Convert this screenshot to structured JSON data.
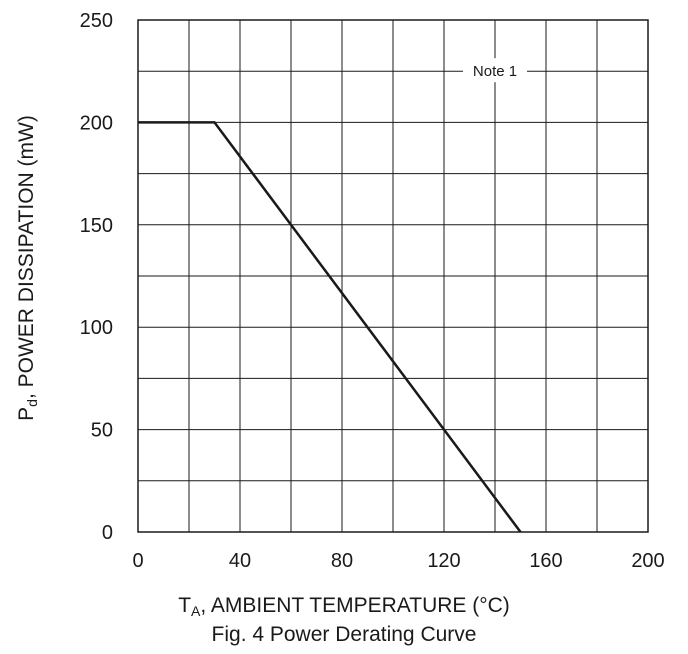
{
  "chart_data": {
    "type": "line",
    "caption": "Fig. 4  Power Derating Curve",
    "xlabel": {
      "symbol": "T",
      "subscript": "A",
      "text": ", AMBIENT TEMPERATURE (°C)"
    },
    "ylabel": {
      "symbol": "P",
      "subscript": "d",
      "text": ", POWER DISSIPATION (mW)"
    },
    "xlim": [
      0,
      200
    ],
    "ylim": [
      0,
      250
    ],
    "x_major_ticks": [
      0,
      40,
      80,
      120,
      160,
      200
    ],
    "y_major_ticks": [
      0,
      50,
      100,
      150,
      200,
      250
    ],
    "x_grid_step": 20,
    "y_grid_step": 25,
    "grid": true,
    "series": [
      {
        "x": [
          0,
          30,
          150
        ],
        "y": [
          200,
          200,
          0
        ],
        "color": "#1a1a1a"
      }
    ],
    "annotations": [
      {
        "text": "Note 1",
        "x": 140,
        "y": 225
      }
    ]
  }
}
